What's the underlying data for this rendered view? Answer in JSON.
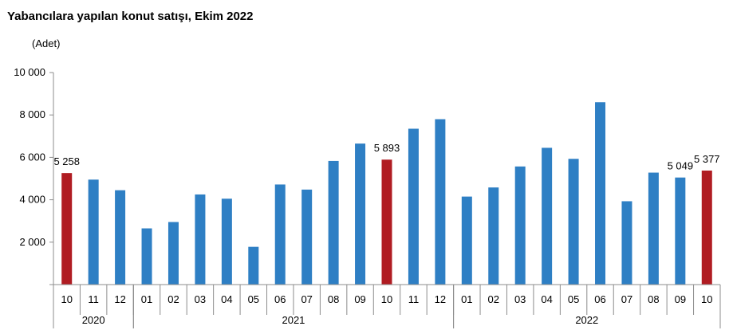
{
  "chart_data": {
    "type": "bar",
    "title": "Yabancılara yapılan konut satışı, Ekim 2022",
    "ylabel": "(Adet)",
    "ylim": [
      0,
      10000
    ],
    "yticks": [
      "",
      "2 000",
      "4 000",
      "6 000",
      "8 000",
      "10 000"
    ],
    "categories": [
      "10",
      "11",
      "12",
      "01",
      "02",
      "03",
      "04",
      "05",
      "06",
      "07",
      "08",
      "09",
      "10",
      "11",
      "12",
      "01",
      "02",
      "03",
      "04",
      "05",
      "06",
      "07",
      "08",
      "09",
      "10"
    ],
    "values": [
      5258,
      4950,
      4450,
      2650,
      2950,
      4250,
      4050,
      1780,
      4720,
      4480,
      5830,
      6650,
      5893,
      7350,
      7800,
      4150,
      4580,
      5570,
      6450,
      5930,
      8600,
      3930,
      5280,
      5049,
      5377
    ],
    "highlight": [
      0,
      12,
      24
    ],
    "years": [
      {
        "label": "2020",
        "start": 0,
        "end": 2
      },
      {
        "label": "2021",
        "start": 3,
        "end": 14
      },
      {
        "label": "2022",
        "start": 15,
        "end": 24
      }
    ],
    "data_labels": [
      {
        "index": 0,
        "text": "5 258"
      },
      {
        "index": 12,
        "text": "5 893"
      },
      {
        "index": 23,
        "text": "5 049"
      },
      {
        "index": 24,
        "text": "5 377"
      }
    ],
    "colors": {
      "bar": "#2e7fc4",
      "highlight": "#b01c22",
      "axis": "#8c8c8c"
    },
    "grid": false
  }
}
